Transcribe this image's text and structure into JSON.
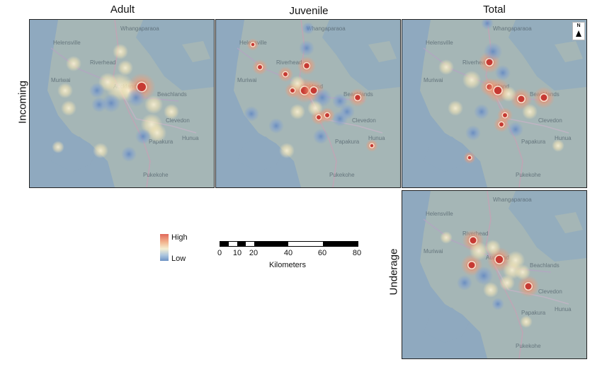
{
  "columns": {
    "adult": "Adult",
    "juvenile": "Juvenile",
    "total": "Total"
  },
  "rows": {
    "incoming": "Incoming",
    "underage": "Underage"
  },
  "north_arrow": "N",
  "legend": {
    "high": "High",
    "low": "Low"
  },
  "scale": {
    "ticks": [
      "0",
      "10",
      "20",
      "40",
      "60",
      "80"
    ],
    "title": "Kilometers"
  },
  "place_names": {
    "whangaparaoa": "Whangaparaoa",
    "helensville": "Helensville",
    "riverhead": "Riverhead",
    "muriwai": "Muriwai",
    "auckland": "Auckland",
    "beachlands": "Beachlands",
    "clevedon": "Clevedon",
    "hunua": "Hunua",
    "papakura": "Papakura",
    "pukekohe": "Pukekohe"
  },
  "colors": {
    "sea": "#8fa9bf",
    "land": "#a9b8b4",
    "high": "#d9473c",
    "low": "#5f86c2",
    "mid": "#f5edc9"
  }
}
